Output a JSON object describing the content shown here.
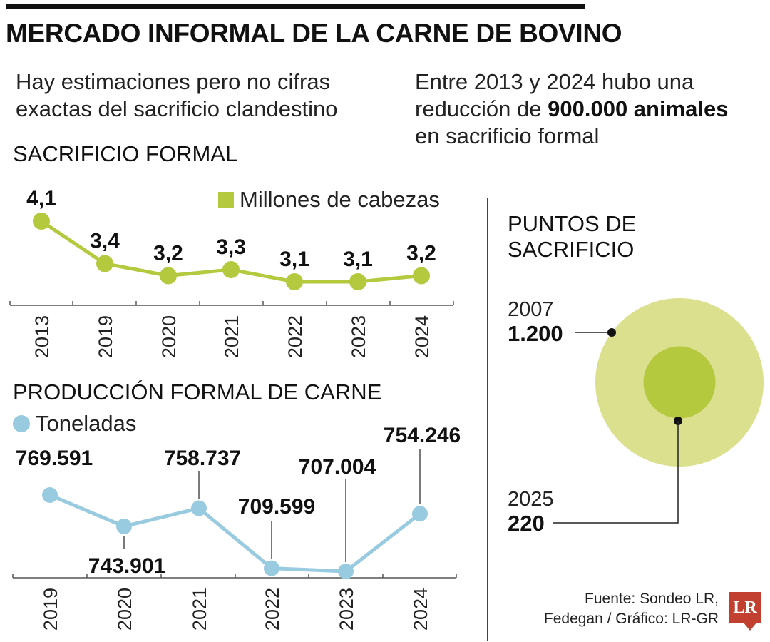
{
  "title": "MERCADO INFORMAL DE LA CARNE DE BOVINO",
  "intro_left": "Hay estimaciones pero no cifras exactas del sacrificio clandestino",
  "intro_right": {
    "pre": "Entre 2013 y 2024 hubo una reducción de ",
    "bold": "900.000 animales",
    "post": " en sacrificio formal"
  },
  "colors": {
    "green": "#b5c93f",
    "green_light": "#dbe08f",
    "blue": "#98cbe0",
    "brand_red": "#c1402f"
  },
  "chart_data": [
    {
      "type": "line",
      "title": "SACRIFICIO FORMAL",
      "legend": "Millones de cabezas",
      "categories": [
        "2013",
        "2019",
        "2020",
        "2021",
        "2022",
        "2023",
        "2024"
      ],
      "values": [
        4.1,
        3.4,
        3.2,
        3.3,
        3.1,
        3.1,
        3.2
      ],
      "labels": [
        "4,1",
        "3,4",
        "3,2",
        "3,3",
        "3,1",
        "3,1",
        "3,2"
      ],
      "ylim": [
        2.5,
        4.5
      ]
    },
    {
      "type": "line",
      "title": "PRODUCCIÓN FORMAL DE CARNE",
      "legend": "Toneladas",
      "categories": [
        "2019",
        "2020",
        "2021",
        "2022",
        "2023",
        "2024"
      ],
      "values": [
        769591,
        743901,
        758737,
        709599,
        707004,
        754246
      ],
      "labels": [
        "769.591",
        "743.901",
        "758.737",
        "709.599",
        "707.004",
        "754.246"
      ],
      "ylim": [
        690000,
        790000
      ]
    },
    {
      "type": "bubble",
      "title": "PUNTOS DE SACRIFICIO",
      "categories": [
        "2007",
        "2025"
      ],
      "values": [
        1200,
        220
      ],
      "labels": [
        "1.200",
        "220"
      ]
    }
  ],
  "source": {
    "line1": "Fuente: Sondeo LR,",
    "line2": "Fedegan / Gráfico: LR-GR"
  },
  "logo": "LR"
}
